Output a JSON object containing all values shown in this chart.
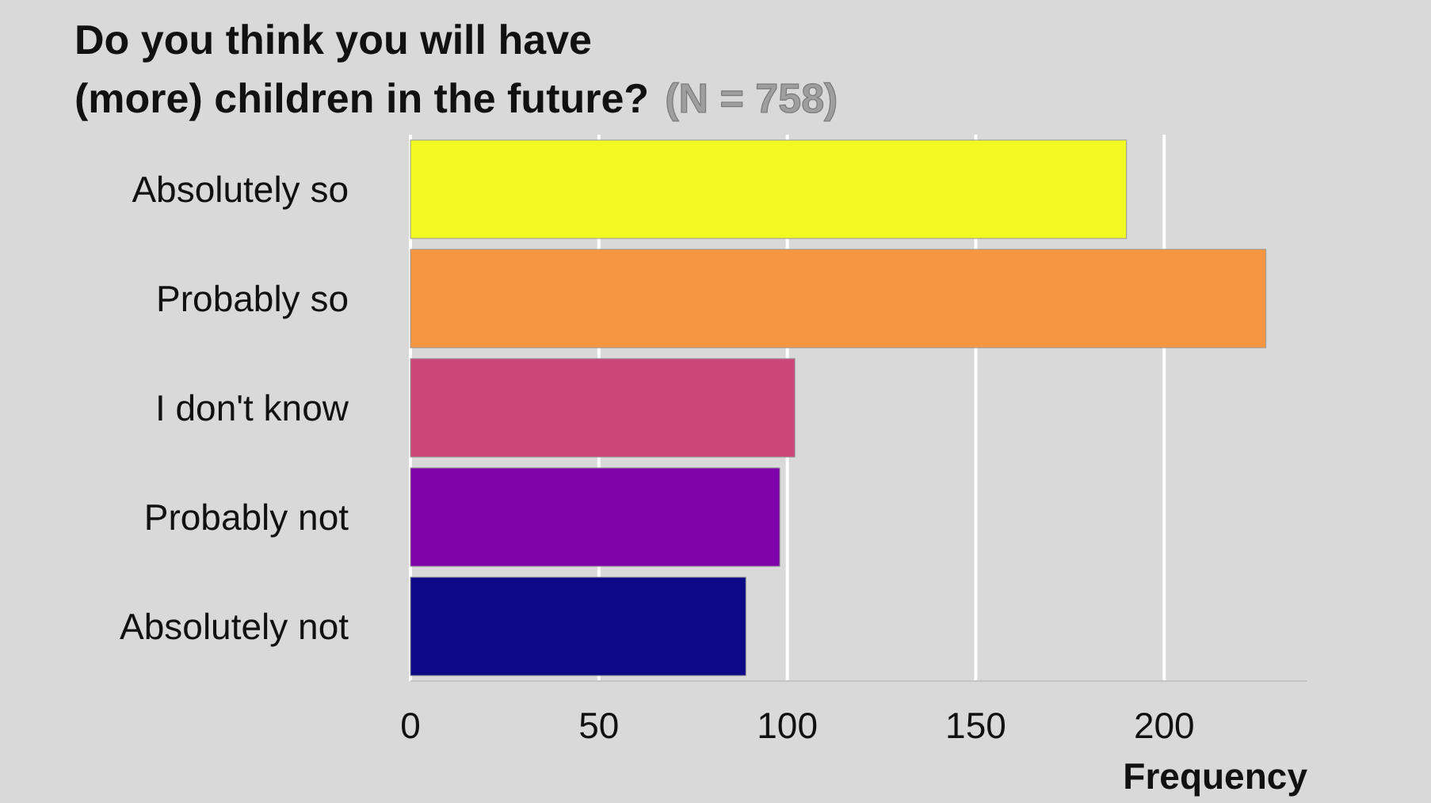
{
  "chart_data": {
    "type": "bar",
    "orientation": "horizontal",
    "title": "Do you think you will have (more) children in the future?",
    "subtitle": "(N = 758)",
    "xlabel": "Frequency",
    "categories": [
      "Absolutely so",
      "Probably so",
      "I don't know",
      "Probably not",
      "Absolutely not"
    ],
    "values": [
      190,
      227,
      102,
      98,
      89
    ],
    "colors": [
      "#f0f921",
      "#f89540",
      "#cc4778",
      "#7e03a8",
      "#0d0887"
    ],
    "xlim": [
      0,
      238
    ],
    "xticks": [
      0,
      50,
      100,
      150,
      200
    ],
    "grid": "x"
  }
}
